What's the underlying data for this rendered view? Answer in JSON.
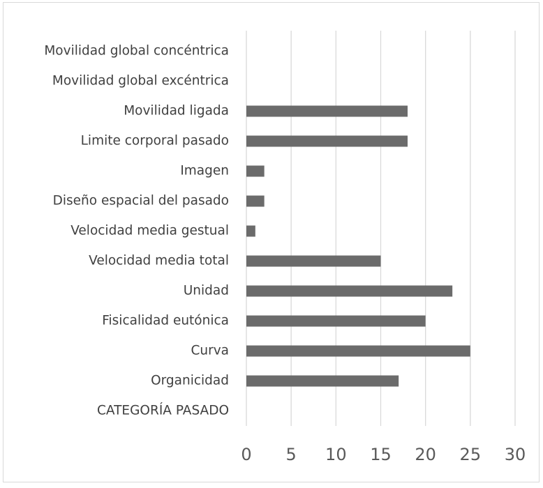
{
  "chart_data": {
    "type": "bar",
    "orientation": "horizontal",
    "categories": [
      "Movilidad global concéntrica",
      "Movilidad global excéntrica",
      "Movilidad ligada",
      "Limite corporal pasado",
      "Imagen",
      "Diseño espacial del pasado",
      "Velocidad media gestual",
      "Velocidad media total",
      "Unidad",
      "Fisicalidad eutónica",
      "Curva",
      "Organicidad",
      "CATEGORÍA PASADO"
    ],
    "values": [
      null,
      null,
      18,
      18,
      2,
      2,
      1,
      15,
      23,
      20,
      25,
      17,
      null
    ],
    "color": "#6b6b6b",
    "xlim": [
      0,
      30
    ],
    "xticks": [
      0,
      5,
      10,
      15,
      20,
      25,
      30
    ],
    "grid": true
  }
}
